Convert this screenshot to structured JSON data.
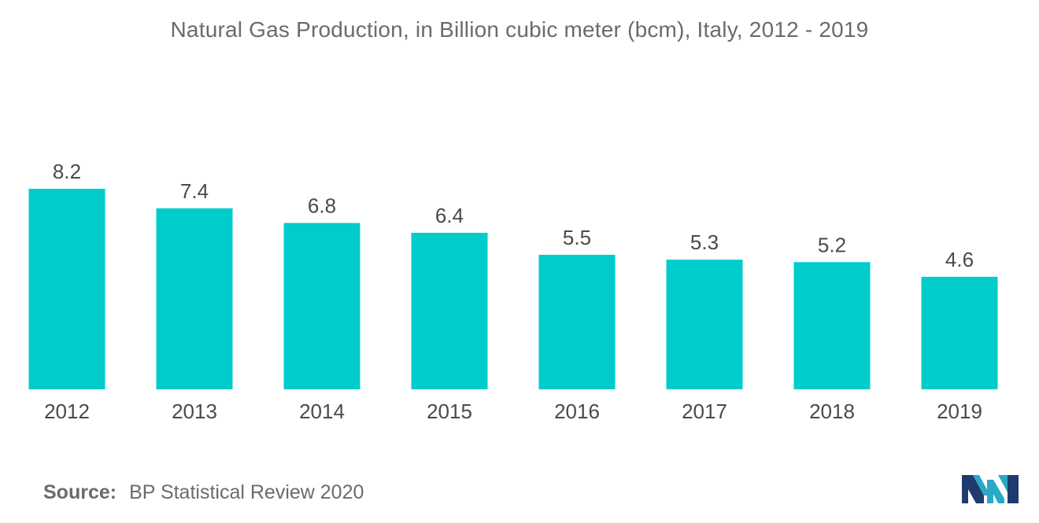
{
  "chart_data": {
    "type": "bar",
    "title": "Natural Gas Production, in Billion cubic meter (bcm), Italy, 2012 - 2019",
    "categories": [
      "2012",
      "2013",
      "2014",
      "2015",
      "2016",
      "2017",
      "2018",
      "2019"
    ],
    "values": [
      8.2,
      7.4,
      6.8,
      6.4,
      5.5,
      5.3,
      5.2,
      4.6
    ],
    "value_labels": [
      "8.2",
      "7.4",
      "6.8",
      "6.4",
      "5.5",
      "5.3",
      "5.2",
      "4.6"
    ],
    "xlabel": "",
    "ylabel": "",
    "ylim": [
      0,
      8.2
    ],
    "grid": false,
    "bar_color": "#00cccc"
  },
  "source": {
    "prefix": "Source:",
    "text": "BP Statistical Review 2020"
  },
  "logo": {
    "icon": "brand-logo-icon",
    "colors": [
      "#1f3b6e",
      "#2aa8c8"
    ]
  }
}
